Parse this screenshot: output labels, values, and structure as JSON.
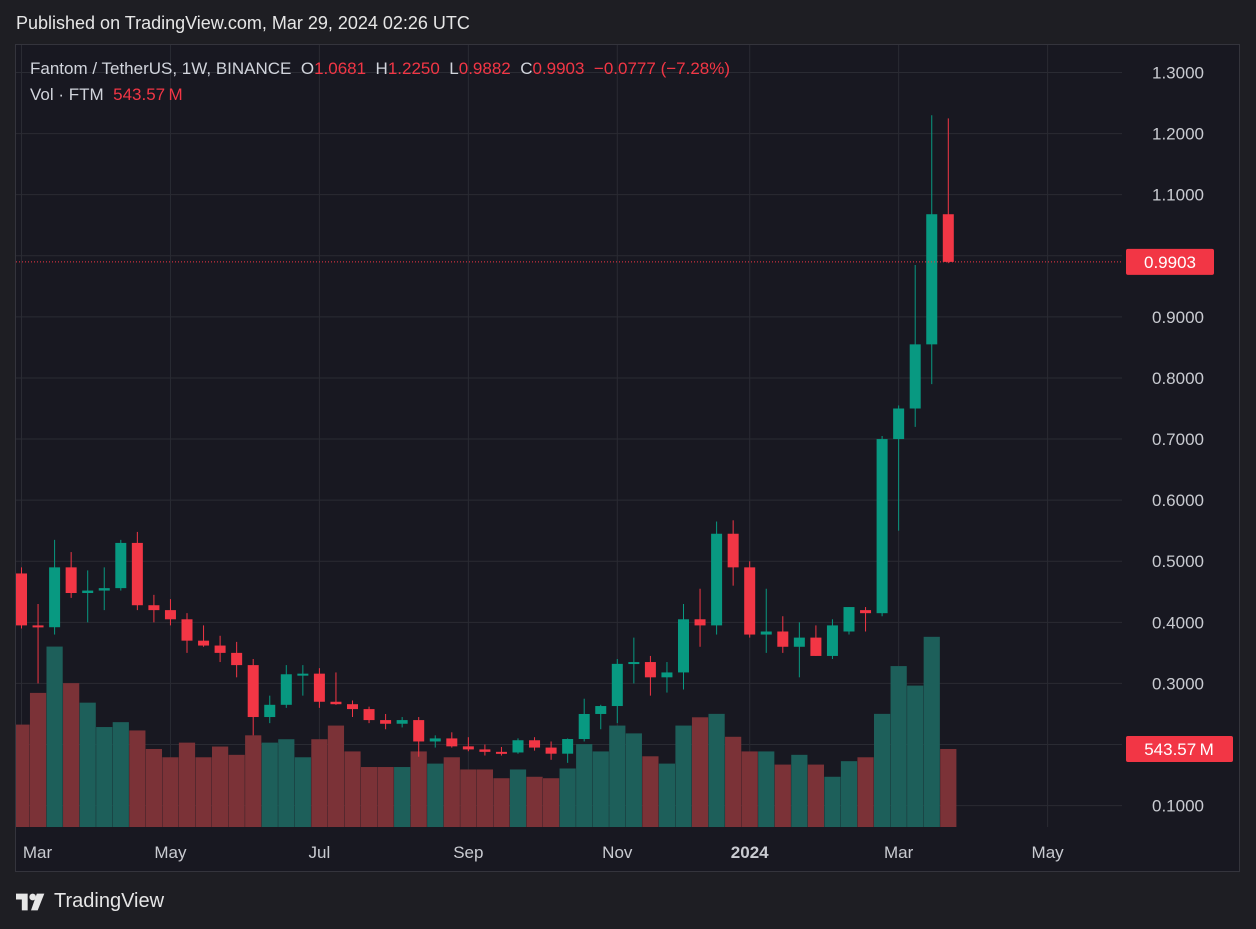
{
  "published": "Published on TradingView.com, Mar 29, 2024 02:26 UTC",
  "legend": {
    "symbol": "Fantom / TetherUS, 1W, BINANCE",
    "open_label": "O",
    "open": "1.0681",
    "high_label": "H",
    "high": "1.2250",
    "low_label": "L",
    "low": "0.9882",
    "close_label": "C",
    "close": "0.9903",
    "change": "−0.0777 (−7.28%)",
    "vol_label": "Vol · FTM",
    "vol_value": "543.57 M"
  },
  "colors": {
    "up": "#089981",
    "down": "#f23645",
    "vol_up": "#1d5f5a",
    "vol_down": "#7b3237",
    "grid": "#2a2b33",
    "axis_text": "#c9cbd1"
  },
  "logo_text": "TradingView",
  "chart_data": {
    "type": "candlestick",
    "symbol": "FTMUSDT",
    "interval": "1W",
    "price_axis": {
      "ticks": [
        "0.1000",
        "0.2000",
        "0.3000",
        "0.4000",
        "0.5000",
        "0.6000",
        "0.7000",
        "0.8000",
        "0.9000",
        "1.0000",
        "1.1000",
        "1.2000",
        "1.3000"
      ],
      "range": [
        0.065,
        1.345
      ]
    },
    "last_price_label": "0.9903",
    "last_volume_label": "543.57 M",
    "time_axis": {
      "labels": [
        {
          "text": "Mar",
          "bar": 0,
          "bold": false
        },
        {
          "text": "May",
          "bar": 9,
          "bold": false
        },
        {
          "text": "Jul",
          "bar": 18,
          "bold": false
        },
        {
          "text": "Sep",
          "bar": 27,
          "bold": false
        },
        {
          "text": "Nov",
          "bar": 36,
          "bold": false
        },
        {
          "text": "2024",
          "bar": 44,
          "bold": true
        },
        {
          "text": "Mar",
          "bar": 53,
          "bold": false
        },
        {
          "text": "May",
          "bar": 62,
          "bold": false
        }
      ]
    },
    "candles": [
      {
        "o": 0.48,
        "h": 0.49,
        "l": 0.39,
        "c": 0.395
      },
      {
        "o": 0.395,
        "h": 0.43,
        "l": 0.3,
        "c": 0.392
      },
      {
        "o": 0.392,
        "h": 0.535,
        "l": 0.38,
        "c": 0.49
      },
      {
        "o": 0.49,
        "h": 0.515,
        "l": 0.44,
        "c": 0.448
      },
      {
        "o": 0.448,
        "h": 0.485,
        "l": 0.4,
        "c": 0.452
      },
      {
        "o": 0.452,
        "h": 0.49,
        "l": 0.42,
        "c": 0.456
      },
      {
        "o": 0.456,
        "h": 0.535,
        "l": 0.452,
        "c": 0.53
      },
      {
        "o": 0.53,
        "h": 0.548,
        "l": 0.42,
        "c": 0.428
      },
      {
        "o": 0.428,
        "h": 0.445,
        "l": 0.4,
        "c": 0.42
      },
      {
        "o": 0.42,
        "h": 0.438,
        "l": 0.395,
        "c": 0.405
      },
      {
        "o": 0.405,
        "h": 0.415,
        "l": 0.35,
        "c": 0.37
      },
      {
        "o": 0.37,
        "h": 0.395,
        "l": 0.36,
        "c": 0.362
      },
      {
        "o": 0.362,
        "h": 0.378,
        "l": 0.335,
        "c": 0.35
      },
      {
        "o": 0.35,
        "h": 0.368,
        "l": 0.31,
        "c": 0.33
      },
      {
        "o": 0.33,
        "h": 0.34,
        "l": 0.215,
        "c": 0.245
      },
      {
        "o": 0.245,
        "h": 0.28,
        "l": 0.235,
        "c": 0.265
      },
      {
        "o": 0.265,
        "h": 0.33,
        "l": 0.26,
        "c": 0.315
      },
      {
        "o": 0.315,
        "h": 0.33,
        "l": 0.28,
        "c": 0.316
      },
      {
        "o": 0.316,
        "h": 0.325,
        "l": 0.26,
        "c": 0.27
      },
      {
        "o": 0.27,
        "h": 0.318,
        "l": 0.265,
        "c": 0.266
      },
      {
        "o": 0.266,
        "h": 0.272,
        "l": 0.245,
        "c": 0.258
      },
      {
        "o": 0.258,
        "h": 0.262,
        "l": 0.235,
        "c": 0.24
      },
      {
        "o": 0.24,
        "h": 0.25,
        "l": 0.225,
        "c": 0.234
      },
      {
        "o": 0.234,
        "h": 0.245,
        "l": 0.228,
        "c": 0.24
      },
      {
        "o": 0.24,
        "h": 0.245,
        "l": 0.18,
        "c": 0.205
      },
      {
        "o": 0.205,
        "h": 0.215,
        "l": 0.195,
        "c": 0.21
      },
      {
        "o": 0.21,
        "h": 0.22,
        "l": 0.195,
        "c": 0.197
      },
      {
        "o": 0.197,
        "h": 0.212,
        "l": 0.189,
        "c": 0.192
      },
      {
        "o": 0.192,
        "h": 0.2,
        "l": 0.182,
        "c": 0.188
      },
      {
        "o": 0.188,
        "h": 0.196,
        "l": 0.182,
        "c": 0.187
      },
      {
        "o": 0.187,
        "h": 0.21,
        "l": 0.185,
        "c": 0.207
      },
      {
        "o": 0.207,
        "h": 0.212,
        "l": 0.19,
        "c": 0.195
      },
      {
        "o": 0.195,
        "h": 0.205,
        "l": 0.175,
        "c": 0.185
      },
      {
        "o": 0.185,
        "h": 0.21,
        "l": 0.17,
        "c": 0.209
      },
      {
        "o": 0.209,
        "h": 0.275,
        "l": 0.205,
        "c": 0.25
      },
      {
        "o": 0.25,
        "h": 0.265,
        "l": 0.225,
        "c": 0.263
      },
      {
        "o": 0.263,
        "h": 0.34,
        "l": 0.235,
        "c": 0.332
      },
      {
        "o": 0.332,
        "h": 0.375,
        "l": 0.3,
        "c": 0.335
      },
      {
        "o": 0.335,
        "h": 0.345,
        "l": 0.28,
        "c": 0.31
      },
      {
        "o": 0.31,
        "h": 0.335,
        "l": 0.285,
        "c": 0.318
      },
      {
        "o": 0.318,
        "h": 0.43,
        "l": 0.29,
        "c": 0.405
      },
      {
        "o": 0.405,
        "h": 0.455,
        "l": 0.36,
        "c": 0.395
      },
      {
        "o": 0.395,
        "h": 0.565,
        "l": 0.38,
        "c": 0.545
      },
      {
        "o": 0.545,
        "h": 0.567,
        "l": 0.46,
        "c": 0.49
      },
      {
        "o": 0.49,
        "h": 0.5,
        "l": 0.375,
        "c": 0.38
      },
      {
        "o": 0.38,
        "h": 0.455,
        "l": 0.35,
        "c": 0.385
      },
      {
        "o": 0.385,
        "h": 0.41,
        "l": 0.35,
        "c": 0.36
      },
      {
        "o": 0.36,
        "h": 0.4,
        "l": 0.31,
        "c": 0.375
      },
      {
        "o": 0.375,
        "h": 0.395,
        "l": 0.345,
        "c": 0.345
      },
      {
        "o": 0.345,
        "h": 0.405,
        "l": 0.34,
        "c": 0.395
      },
      {
        "o": 0.385,
        "h": 0.425,
        "l": 0.38,
        "c": 0.425
      },
      {
        "o": 0.42,
        "h": 0.425,
        "l": 0.385,
        "c": 0.415
      },
      {
        "o": 0.415,
        "h": 0.705,
        "l": 0.41,
        "c": 0.7
      },
      {
        "o": 0.7,
        "h": 0.755,
        "l": 0.55,
        "c": 0.75
      },
      {
        "o": 0.75,
        "h": 0.985,
        "l": 0.72,
        "c": 0.855
      },
      {
        "o": 0.855,
        "h": 1.23,
        "l": 0.79,
        "c": 1.068
      },
      {
        "o": 1.068,
        "h": 1.225,
        "l": 0.988,
        "c": 0.99
      }
    ],
    "volume": {
      "range_top_fraction": 0.76,
      "values": [
        210,
        275,
        370,
        295,
        255,
        205,
        215,
        198,
        160,
        143,
        173,
        143,
        165,
        148,
        188,
        173,
        180,
        143,
        180,
        208,
        155,
        123,
        123,
        123,
        155,
        130,
        143,
        118,
        118,
        100,
        118,
        103,
        100,
        120,
        170,
        155,
        208,
        192,
        145,
        130,
        208,
        225,
        232,
        185,
        155,
        155,
        128,
        148,
        128,
        103,
        135,
        143,
        232,
        330,
        290,
        390,
        160
      ]
    }
  }
}
